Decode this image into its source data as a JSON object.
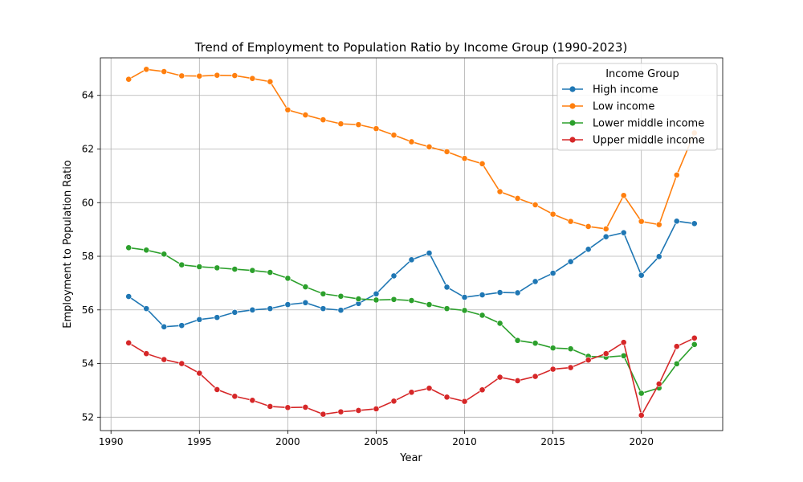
{
  "chart_data": {
    "type": "line",
    "title": "Trend of Employment to Population Ratio by Income Group (1990-2023)",
    "xlabel": "Year",
    "ylabel": "Employment to Population Ratio",
    "xlim": [
      1989.4,
      2024.6
    ],
    "ylim": [
      51.5,
      65.4
    ],
    "xticks": [
      1990,
      1995,
      2000,
      2005,
      2010,
      2015,
      2020
    ],
    "yticks": [
      52,
      54,
      56,
      58,
      60,
      62,
      64
    ],
    "grid": true,
    "legend": {
      "title": "Income Group",
      "placement": "top-right"
    },
    "x": [
      1991,
      1992,
      1993,
      1994,
      1995,
      1996,
      1997,
      1998,
      1999,
      2000,
      2001,
      2002,
      2003,
      2004,
      2005,
      2006,
      2007,
      2008,
      2009,
      2010,
      2011,
      2012,
      2013,
      2014,
      2015,
      2016,
      2017,
      2018,
      2019,
      2020,
      2021,
      2022,
      2023
    ],
    "series": [
      {
        "name": "High income",
        "color": "#1f77b4",
        "values": [
          56.5,
          56.05,
          55.37,
          55.42,
          55.64,
          55.72,
          55.91,
          56.0,
          56.05,
          56.2,
          56.27,
          56.05,
          55.99,
          56.24,
          56.6,
          57.27,
          57.87,
          58.12,
          56.85,
          56.47,
          56.56,
          56.65,
          56.64,
          57.06,
          57.37,
          57.8,
          58.26,
          58.73,
          58.88,
          57.29,
          57.99,
          59.31,
          59.22
        ]
      },
      {
        "name": "Low income",
        "color": "#ff7f0e",
        "values": [
          64.6,
          64.97,
          64.89,
          64.73,
          64.72,
          64.75,
          64.74,
          64.63,
          64.51,
          63.46,
          63.27,
          63.09,
          62.94,
          62.91,
          62.76,
          62.52,
          62.27,
          62.08,
          61.9,
          61.65,
          61.45,
          60.41,
          60.16,
          59.92,
          59.57,
          59.3,
          59.11,
          59.02,
          60.27,
          59.3,
          59.18,
          61.03,
          62.6
        ]
      },
      {
        "name": "Lower middle income",
        "color": "#2ca02c",
        "values": [
          58.32,
          58.23,
          58.08,
          57.68,
          57.61,
          57.57,
          57.52,
          57.47,
          57.4,
          57.18,
          56.86,
          56.6,
          56.51,
          56.41,
          56.37,
          56.39,
          56.35,
          56.2,
          56.05,
          55.98,
          55.8,
          55.5,
          54.86,
          54.76,
          54.58,
          54.55,
          54.27,
          54.24,
          54.29,
          52.89,
          53.09,
          53.99,
          54.71
        ]
      },
      {
        "name": "Upper middle income",
        "color": "#d62728",
        "values": [
          54.77,
          54.37,
          54.15,
          54.0,
          53.64,
          53.03,
          52.78,
          52.63,
          52.4,
          52.36,
          52.37,
          52.11,
          52.2,
          52.25,
          52.31,
          52.6,
          52.93,
          53.08,
          52.75,
          52.59,
          53.02,
          53.49,
          53.36,
          53.52,
          53.79,
          53.85,
          54.13,
          54.37,
          54.79,
          52.07,
          53.24,
          54.64,
          54.95
        ]
      }
    ]
  }
}
